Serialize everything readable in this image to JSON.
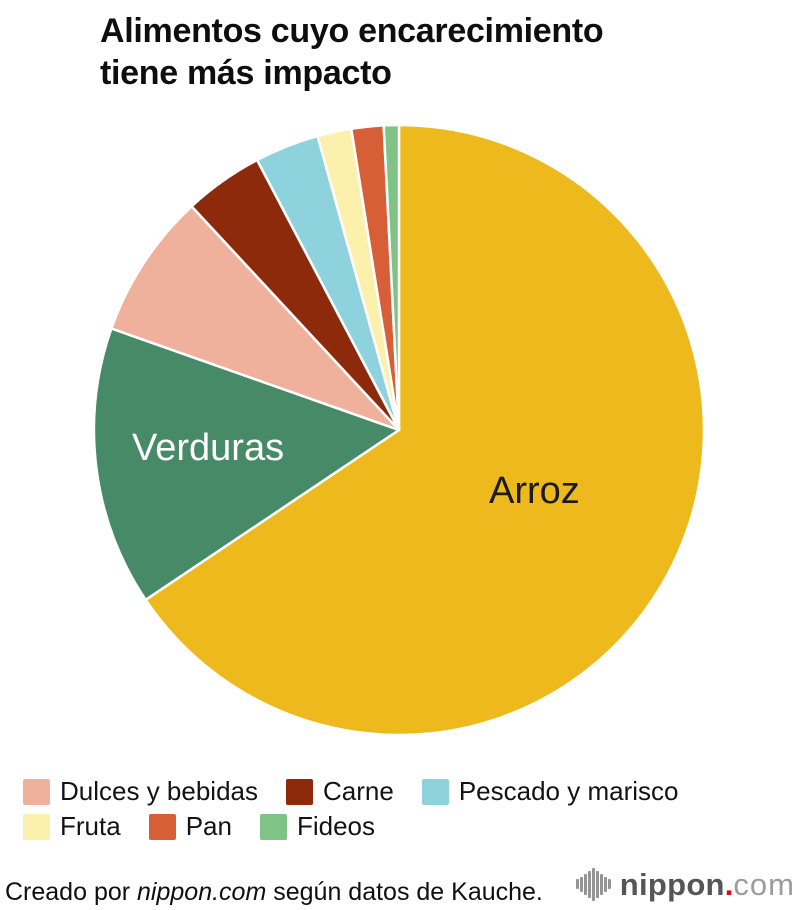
{
  "page": {
    "title_line1": "Alimentos cuyo encarecimiento",
    "title_line2": "tiene más impacto"
  },
  "chart_data": {
    "type": "pie",
    "title": "Alimentos cuyo encarecimiento tiene más impacto",
    "start_angle_deg": 0,
    "direction": "clockwise",
    "legend_position": "bottom",
    "series": [
      {
        "label": "Arroz",
        "value_pct": 65.6,
        "color": "#EDB91D"
      },
      {
        "label": "Verduras",
        "value_pct": 14.8,
        "color": "#478A67"
      },
      {
        "label": "Dulces y bebidas",
        "value_pct": 7.7,
        "color": "#F0B19C"
      },
      {
        "label": "Carne",
        "value_pct": 4.2,
        "color": "#8C2A0B"
      },
      {
        "label": "Pescado y marisco",
        "value_pct": 3.4,
        "color": "#8DD2DC"
      },
      {
        "label": "Fruta",
        "value_pct": 1.8,
        "color": "#FCF0AD"
      },
      {
        "label": "Pan",
        "value_pct": 1.7,
        "color": "#D75F38"
      },
      {
        "label": "Fideos",
        "value_pct": 0.8,
        "color": "#7FC386"
      }
    ],
    "labels_on_chart": [
      {
        "text": "Arroz",
        "color": "#1a1a1a"
      },
      {
        "text": "Verduras",
        "color": "#ffffff"
      }
    ],
    "legend_rows": [
      [
        "Dulces y bebidas",
        "Carne",
        "Pescado y marisco"
      ],
      [
        "Fruta",
        "Pan",
        "Fideos"
      ]
    ],
    "slice_gap_color": "#ffffff"
  },
  "footer": {
    "credit_prefix": "Creado por ",
    "credit_source": "nippon.com",
    "credit_suffix": " según datos de Kauche.",
    "logo": {
      "icon": "soundwave-bars-icon",
      "name_bold": "nippon",
      "dot": ".",
      "name_light": "com",
      "dot_color": "#E50012"
    }
  }
}
